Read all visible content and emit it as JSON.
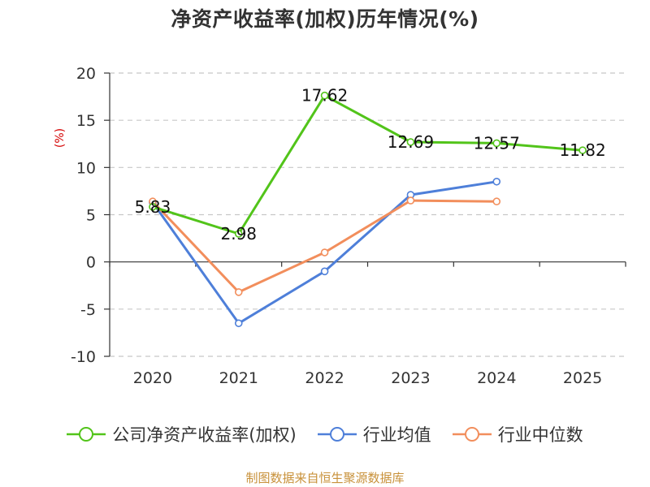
{
  "title": "净资产收益率(加权)历年情况(%)",
  "source": "制图数据来自恒生聚源数据库",
  "chart_data": {
    "type": "line",
    "title": "净资产收益率(加权)历年情况(%)",
    "xlabel": "",
    "ylabel": "(%)",
    "categories": [
      "2020",
      "2021",
      "2022",
      "2023",
      "2024",
      "2025"
    ],
    "ylim": [
      -10,
      20
    ],
    "yticks": [
      20,
      15,
      10,
      5,
      0,
      -5,
      -10
    ],
    "grid": true,
    "legend_position": "bottom",
    "series": [
      {
        "name": "公司净资产收益率(加权)",
        "color": "#52c41a",
        "values": [
          5.83,
          2.98,
          17.62,
          12.69,
          12.57,
          11.82
        ],
        "labels": [
          "5.83",
          "2.98",
          "17.62",
          "12.69",
          "12.57",
          "11.82"
        ]
      },
      {
        "name": "行业均值",
        "color": "#4e7fd9",
        "values": [
          6.3,
          -6.5,
          -1.0,
          7.1,
          8.5,
          null
        ]
      },
      {
        "name": "行业中位数",
        "color": "#f28e5c",
        "values": [
          6.4,
          -3.2,
          1.0,
          6.5,
          6.4,
          null
        ]
      }
    ]
  }
}
